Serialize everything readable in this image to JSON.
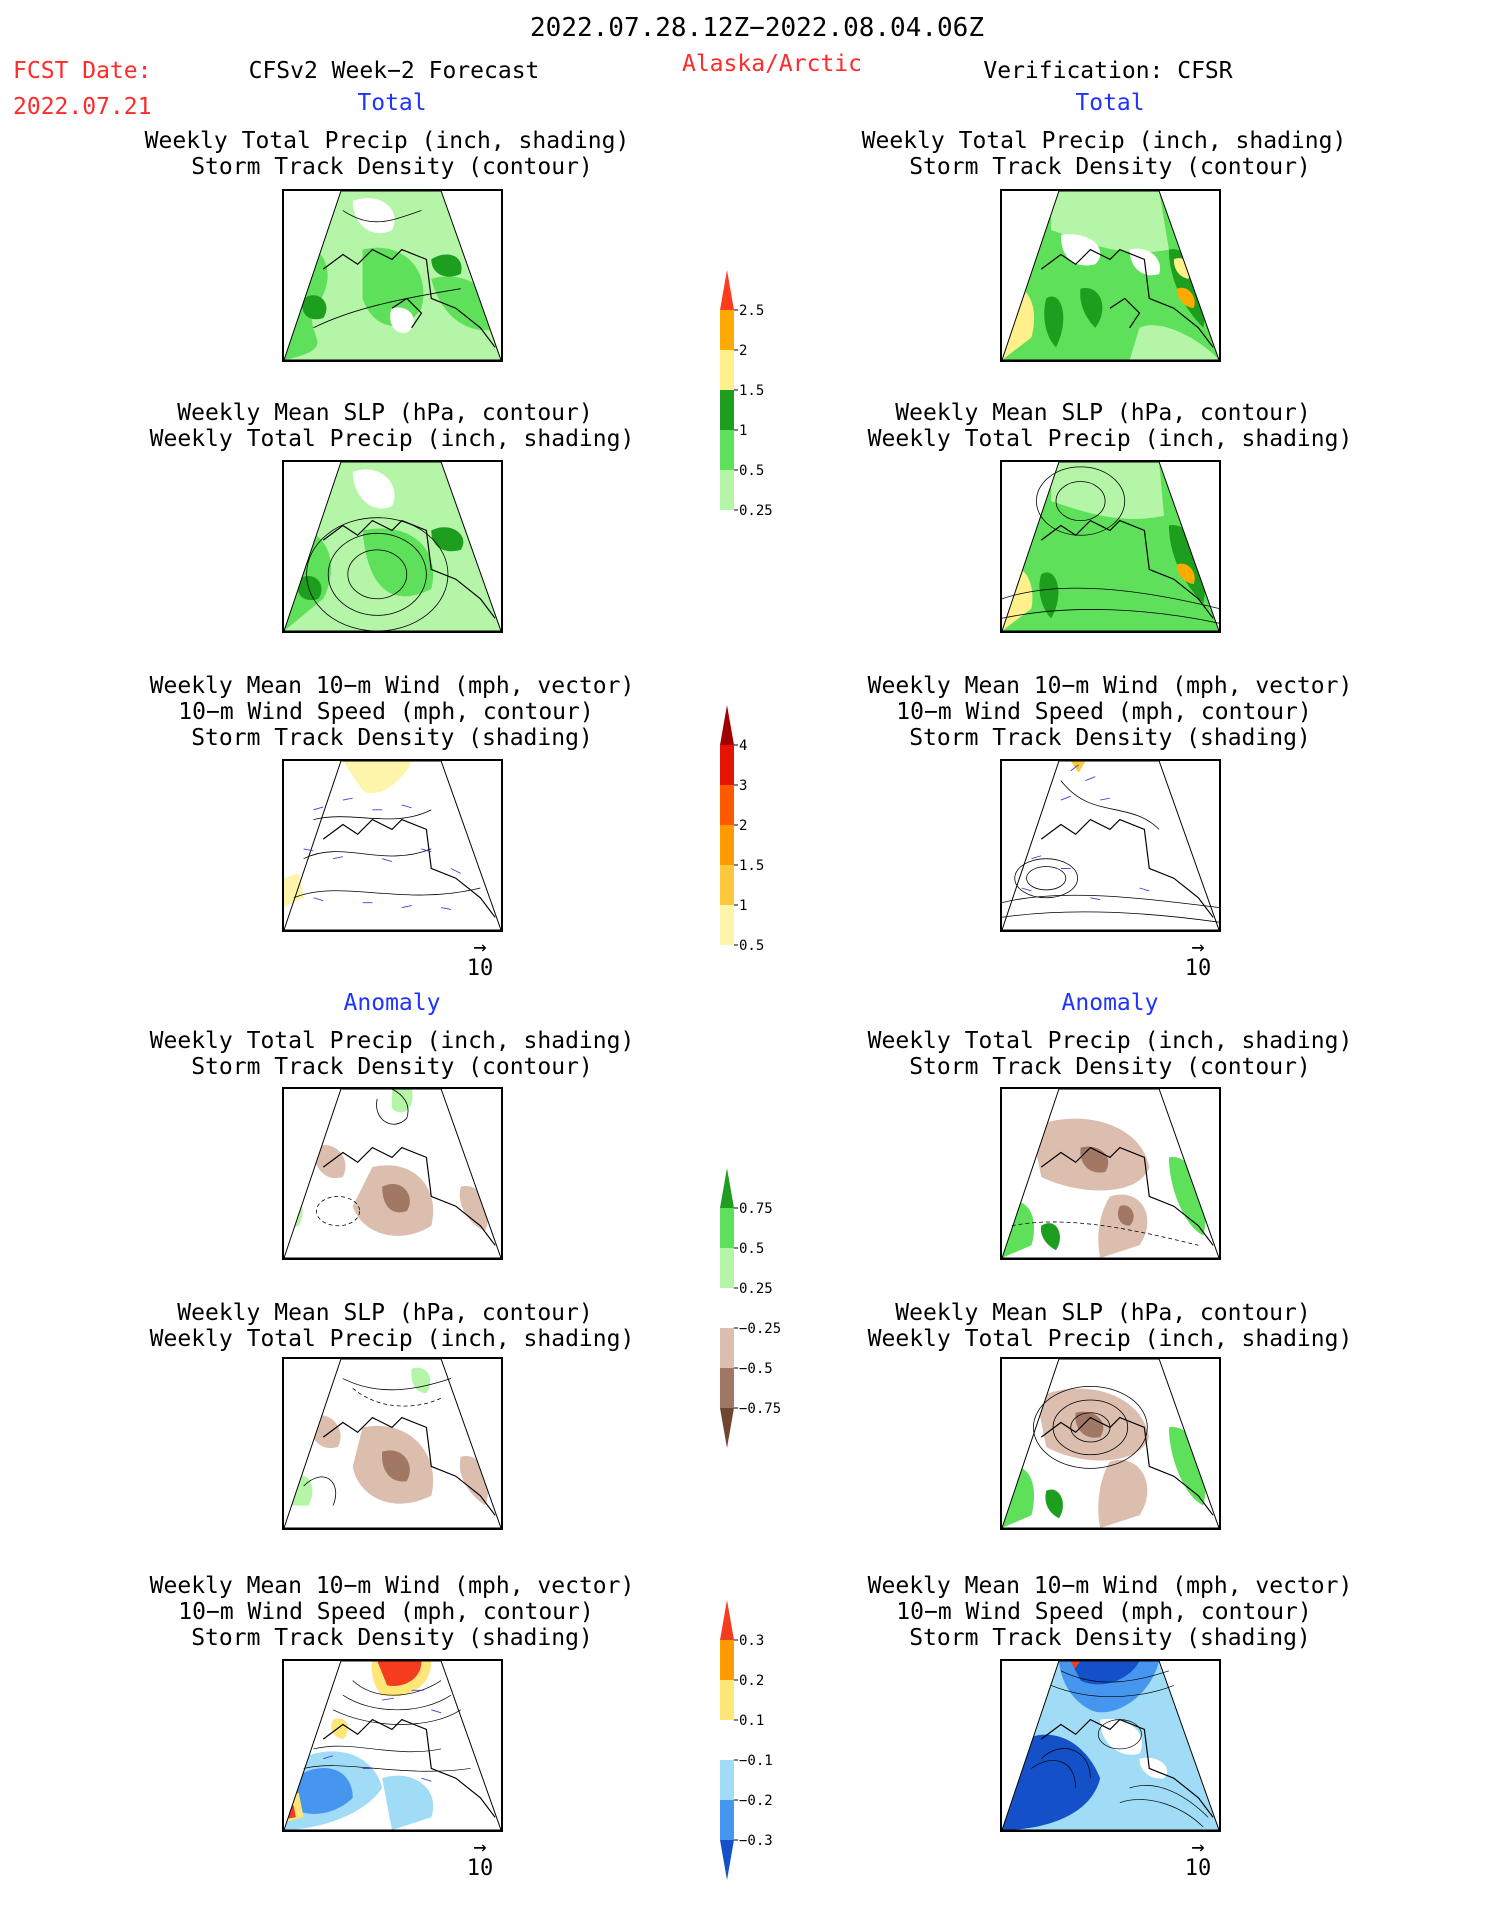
{
  "header": {
    "period": "2022.07.28.12Z−2022.08.04.06Z",
    "fcst_label": "FCST Date:",
    "fcst_date": "2022.07.21",
    "model": "CFSv2 Week−2 Forecast",
    "region": "Alaska/Arctic",
    "verification": "Verification: CFSR"
  },
  "sections": {
    "total": "Total",
    "anomaly": "Anomaly"
  },
  "panel_titles": {
    "precip_track": [
      "Weekly Total Precip (inch, shading)",
      "Storm Track Density (contour)"
    ],
    "slp_precip": [
      "Weekly Mean SLP (hPa, contour)",
      "Weekly Total Precip (inch, shading)"
    ],
    "wind": [
      "Weekly Mean 10−m Wind (mph, vector)",
      "10−m Wind Speed (mph, contour)",
      "Storm Track Density (shading)"
    ]
  },
  "vector_ref": "10",
  "colorbars": {
    "precip_total": {
      "colors": [
        "#ffffff",
        "#b4f5a8",
        "#5fe05a",
        "#1e9e1e",
        "#fff08c",
        "#ffaa00",
        "#ff3c1e"
      ],
      "labels": [
        "0.25",
        "0.5",
        "1",
        "1.5",
        "2",
        "2.5"
      ]
    },
    "track_total": {
      "colors": [
        "#ffffff",
        "#fff5aa",
        "#ffc83c",
        "#ff9b00",
        "#ff5a00",
        "#e61400",
        "#a00000"
      ],
      "labels": [
        "0.5",
        "1",
        "1.5",
        "2",
        "3",
        "4"
      ]
    },
    "precip_anom": {
      "colors": [
        "#6e4632",
        "#a07864",
        "#dcbeaf",
        "#ffffff",
        "#b4f5a8",
        "#5fe05a",
        "#1e9e1e"
      ],
      "labels": [
        "−0.75",
        "−0.5",
        "−0.25",
        "0.25",
        "0.5",
        "0.75"
      ]
    },
    "track_anom": {
      "colors": [
        "#1450c8",
        "#4696f0",
        "#a0dcf5",
        "#ffffff",
        "#ffe678",
        "#ff9b00",
        "#f53c1e"
      ],
      "labels": [
        "−0.3",
        "−0.2",
        "−0.1",
        "0.1",
        "0.2",
        "0.3"
      ]
    }
  }
}
